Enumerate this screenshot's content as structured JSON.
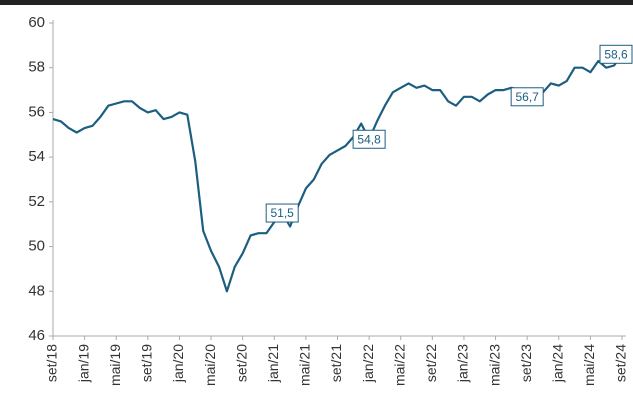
{
  "chart_data": {
    "type": "line",
    "categories": [
      "set/18",
      null,
      null,
      null,
      "jan/19",
      null,
      null,
      null,
      "mai/19",
      null,
      null,
      null,
      "set/19",
      null,
      null,
      null,
      "jan/20",
      null,
      null,
      null,
      "mai/20",
      null,
      null,
      null,
      "set/20",
      null,
      null,
      null,
      "jan/21",
      null,
      null,
      null,
      "mai/21",
      null,
      null,
      null,
      "set/21",
      null,
      null,
      null,
      "jan/22",
      null,
      null,
      null,
      "mai/22",
      null,
      null,
      null,
      "set/22",
      null,
      null,
      null,
      "jan/23",
      null,
      null,
      null,
      "mai/23",
      null,
      null,
      null,
      "set/23",
      null,
      null,
      null,
      "jan/24",
      null,
      null,
      null,
      "mai/24",
      null,
      null,
      null,
      "set/24"
    ],
    "values": [
      55.7,
      55.6,
      55.3,
      55.1,
      55.3,
      55.4,
      55.8,
      56.3,
      56.4,
      56.5,
      56.5,
      56.2,
      56.0,
      56.1,
      55.7,
      55.8,
      56.0,
      55.9,
      53.8,
      50.7,
      49.8,
      49.1,
      48.0,
      49.1,
      49.7,
      50.5,
      50.6,
      50.6,
      51.1,
      51.5,
      50.9,
      51.8,
      52.6,
      53.0,
      53.7,
      54.1,
      54.3,
      54.5,
      54.9,
      55.5,
      54.8,
      55.6,
      56.3,
      56.9,
      57.1,
      57.3,
      57.1,
      57.2,
      57.0,
      57.0,
      56.5,
      56.3,
      56.7,
      56.7,
      56.5,
      56.8,
      57.0,
      57.0,
      57.1,
      57.0,
      56.7,
      57.0,
      56.9,
      57.3,
      57.2,
      57.4,
      58.0,
      58.0,
      57.8,
      58.3,
      58.0,
      58.1,
      58.6
    ],
    "value_labels": [
      null,
      null,
      null,
      null,
      null,
      null,
      null,
      null,
      null,
      null,
      null,
      null,
      null,
      null,
      null,
      null,
      null,
      null,
      null,
      null,
      null,
      null,
      null,
      null,
      null,
      null,
      null,
      null,
      null,
      "51,5",
      null,
      null,
      null,
      null,
      null,
      null,
      null,
      null,
      null,
      null,
      "54,8",
      null,
      null,
      null,
      null,
      null,
      null,
      null,
      null,
      null,
      null,
      null,
      null,
      null,
      null,
      null,
      null,
      null,
      null,
      null,
      "56,7",
      null,
      null,
      null,
      null,
      null,
      null,
      null,
      null,
      null,
      null,
      null,
      "58,6"
    ],
    "color": "#1c5e80",
    "ylim": [
      46,
      60
    ],
    "yticks": [
      46,
      48,
      50,
      52,
      54,
      56,
      58,
      60
    ],
    "grid": false
  }
}
